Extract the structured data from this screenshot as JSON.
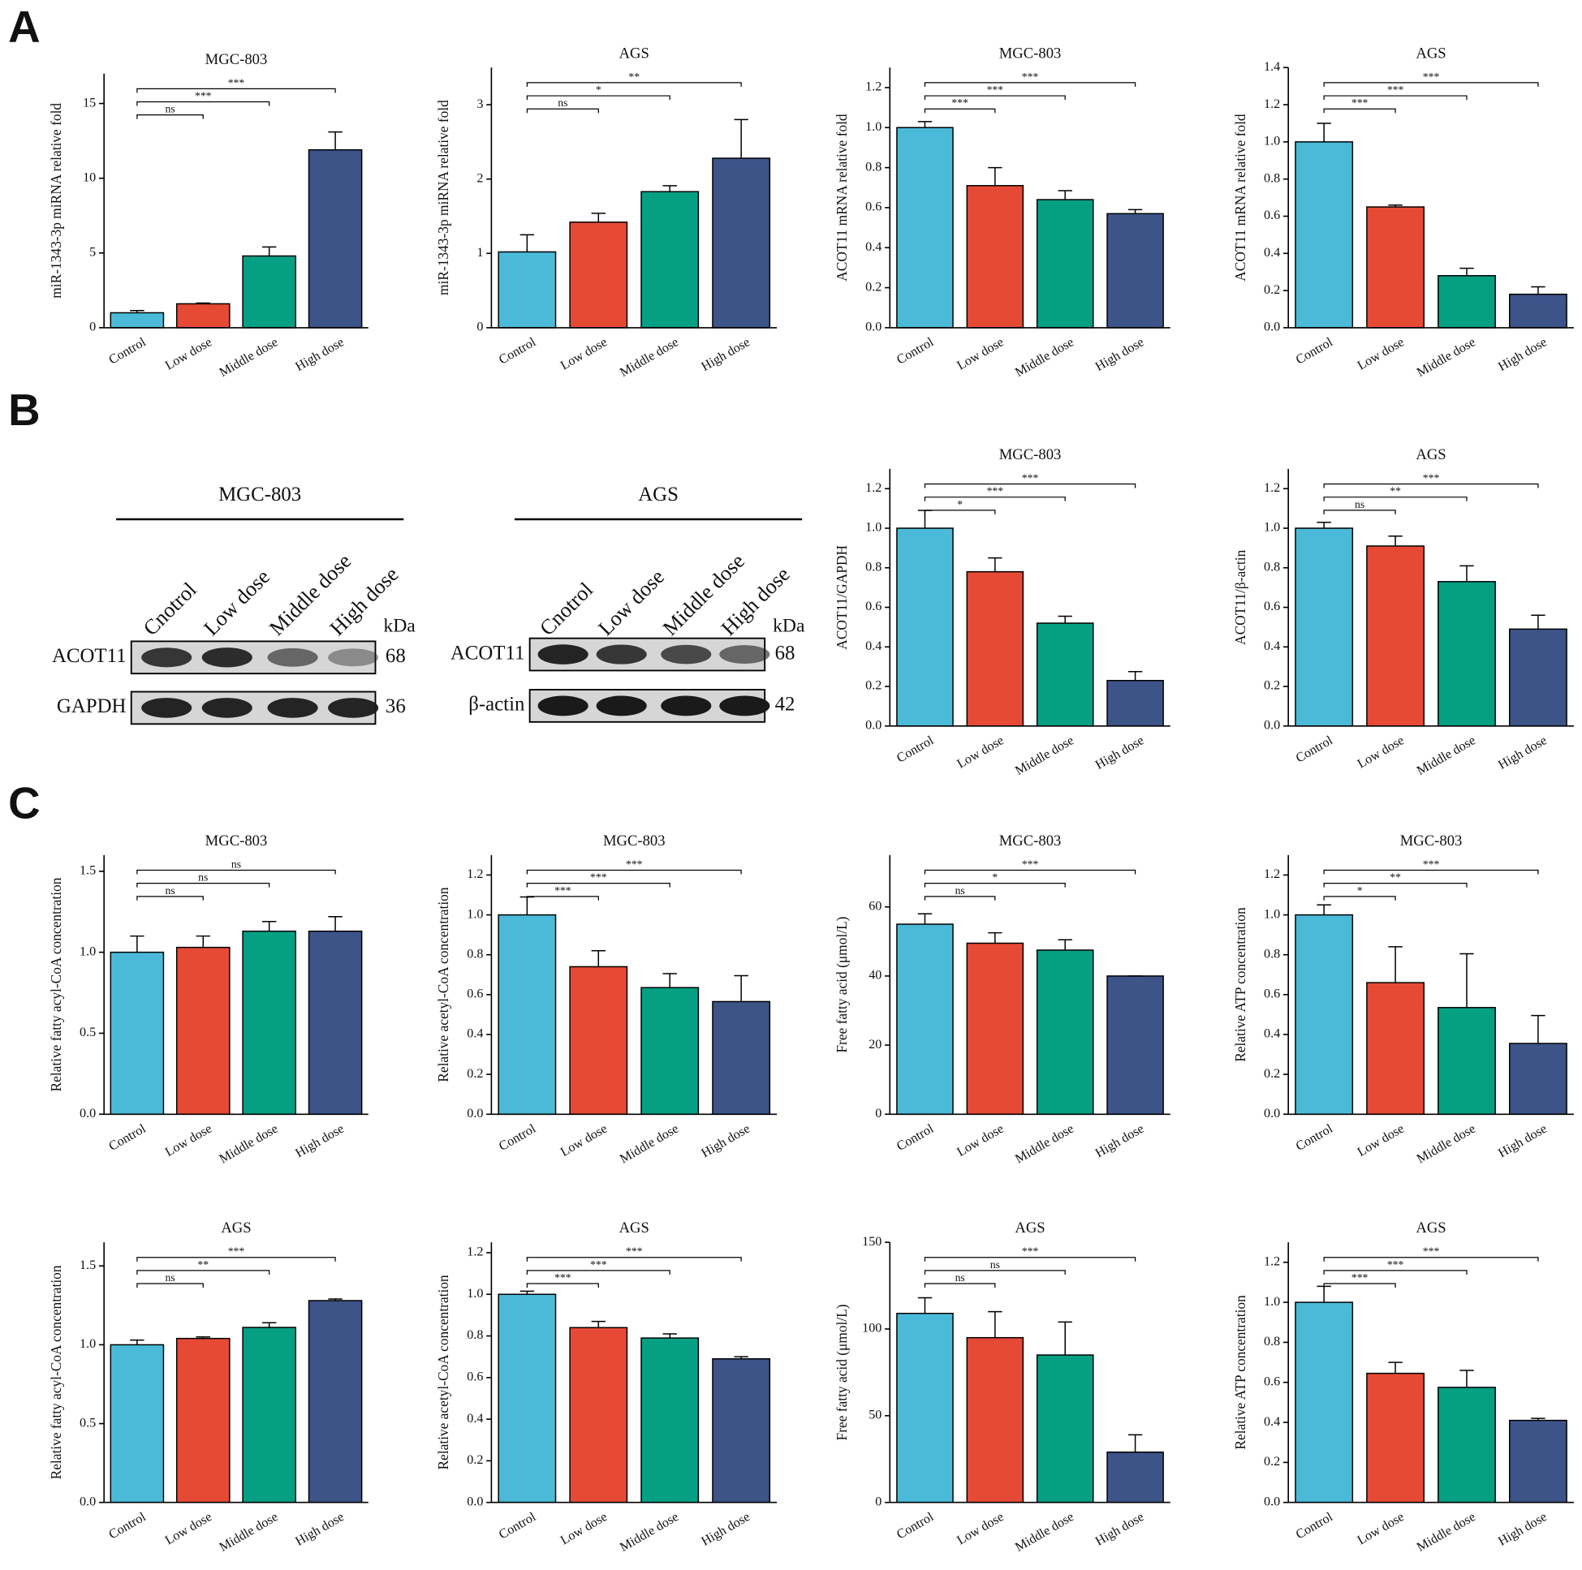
{
  "panels": [
    "A",
    "B",
    "C"
  ],
  "blots": [
    {
      "title": "MGC-803",
      "lanes": [
        "Cnotrol",
        "Low dose",
        "Middle dose",
        "High dose"
      ],
      "unit": "kDa",
      "rows": [
        {
          "label": "ACOT11",
          "size": "68"
        },
        {
          "label": "GAPDH",
          "size": "36"
        }
      ]
    },
    {
      "title": "AGS",
      "lanes": [
        "Cnotrol",
        "Low dose",
        "Middle dose",
        "High dose"
      ],
      "unit": "kDa",
      "rows": [
        {
          "label": "ACOT11",
          "size": "68"
        },
        {
          "label": "β-actin",
          "size": "42"
        }
      ]
    }
  ],
  "chart_data": [
    {
      "type": "bar",
      "title": "MGC-803",
      "ylabel": "miR-1343-3p miRNA relative fold",
      "categories": [
        "Control",
        "Low dose",
        "Middle dose",
        "High dose"
      ],
      "colors": [
        "#4bbad8",
        "#e64a35",
        "#05a083",
        "#3c5488"
      ],
      "values": [
        1,
        1.6,
        4.8,
        11.9
      ],
      "errors": [
        0.15,
        0.05,
        0.6,
        1.2
      ],
      "significance": [
        "ns",
        "***",
        "***"
      ],
      "ylim": [
        0,
        17
      ],
      "yticks": [
        0,
        5,
        10,
        15
      ]
    },
    {
      "type": "bar",
      "title": "AGS",
      "ylabel": "miR-1343-3p miRNA relative fold",
      "categories": [
        "Control",
        "Low dose",
        "Middle dose",
        "High dose"
      ],
      "colors": [
        "#4bbad8",
        "#e64a35",
        "#05a083",
        "#3c5488"
      ],
      "values": [
        1.02,
        1.42,
        1.83,
        2.28
      ],
      "errors": [
        0.23,
        0.12,
        0.08,
        0.52
      ],
      "significance": [
        "ns",
        "*",
        "**"
      ],
      "ylim": [
        0,
        3.5
      ],
      "yticks": [
        0,
        1,
        2,
        3
      ]
    },
    {
      "type": "bar",
      "title": "MGC-803",
      "ylabel": "ACOT11 mRNA relative fold",
      "categories": [
        "Control",
        "Low dose",
        "Middle dose",
        "High dose"
      ],
      "colors": [
        "#4bbad8",
        "#e64a35",
        "#05a083",
        "#3c5488"
      ],
      "values": [
        1.0,
        0.71,
        0.64,
        0.57
      ],
      "errors": [
        0.03,
        0.09,
        0.045,
        0.02
      ],
      "significance": [
        "***",
        "***",
        "***"
      ],
      "ylim": [
        0,
        1.3
      ],
      "yticks": [
        {
          "value": 0,
          "label": "0.0"
        },
        {
          "value": 0.2,
          "label": "0.2"
        },
        {
          "value": 0.4,
          "label": "0.4"
        },
        {
          "value": 0.6,
          "label": "0.6"
        },
        {
          "value": 0.8,
          "label": "0.8"
        },
        {
          "value": 1,
          "label": "1.0"
        },
        {
          "value": 1.2,
          "label": "1.2"
        }
      ]
    },
    {
      "type": "bar",
      "title": "AGS",
      "ylabel": "ACOT11 mRNA relative fold",
      "categories": [
        "Control",
        "Low dose",
        "Middle dose",
        "High dose"
      ],
      "colors": [
        "#4bbad8",
        "#e64a35",
        "#05a083",
        "#3c5488"
      ],
      "values": [
        1.0,
        0.65,
        0.28,
        0.18
      ],
      "errors": [
        0.1,
        0.01,
        0.04,
        0.04
      ],
      "significance": [
        "***",
        "***",
        "***"
      ],
      "ylim": [
        0,
        1.4
      ],
      "yticks": [
        {
          "value": 0,
          "label": "0.0"
        },
        {
          "value": 0.2,
          "label": "0.2"
        },
        {
          "value": 0.4,
          "label": "0.4"
        },
        {
          "value": 0.6,
          "label": "0.6"
        },
        {
          "value": 0.8,
          "label": "0.8"
        },
        {
          "value": 1,
          "label": "1.0"
        },
        {
          "value": 1.2,
          "label": "1.2"
        },
        {
          "value": 1.4,
          "label": "1.4"
        }
      ]
    },
    {
      "type": "bar",
      "title": "MGC-803",
      "ylabel": "ACOT11/GAPDH",
      "categories": [
        "Control",
        "Low dose",
        "Middle dose",
        "High dose"
      ],
      "colors": [
        "#4bbad8",
        "#e64a35",
        "#05a083",
        "#3c5488"
      ],
      "values": [
        1.0,
        0.78,
        0.52,
        0.23
      ],
      "errors": [
        0.09,
        0.07,
        0.035,
        0.045
      ],
      "significance": [
        "*",
        "***",
        "***"
      ],
      "ylim": [
        0,
        1.3
      ],
      "yticks": [
        {
          "value": 0,
          "label": "0.0"
        },
        {
          "value": 0.2,
          "label": "0.2"
        },
        {
          "value": 0.4,
          "label": "0.4"
        },
        {
          "value": 0.6,
          "label": "0.6"
        },
        {
          "value": 0.8,
          "label": "0.8"
        },
        {
          "value": 1,
          "label": "1.0"
        },
        {
          "value": 1.2,
          "label": "1.2"
        }
      ]
    },
    {
      "type": "bar",
      "title": "AGS",
      "ylabel": "ACOT11/β-actin",
      "categories": [
        "Control",
        "Low dose",
        "Middle dose",
        "High dose"
      ],
      "colors": [
        "#4bbad8",
        "#e64a35",
        "#05a083",
        "#3c5488"
      ],
      "values": [
        1.0,
        0.91,
        0.73,
        0.49
      ],
      "errors": [
        0.03,
        0.05,
        0.08,
        0.07
      ],
      "significance": [
        "ns",
        "**",
        "***"
      ],
      "ylim": [
        0,
        1.3
      ],
      "yticks": [
        {
          "value": 0,
          "label": "0.0"
        },
        {
          "value": 0.2,
          "label": "0.2"
        },
        {
          "value": 0.4,
          "label": "0.4"
        },
        {
          "value": 0.6,
          "label": "0.6"
        },
        {
          "value": 0.8,
          "label": "0.8"
        },
        {
          "value": 1,
          "label": "1.0"
        },
        {
          "value": 1.2,
          "label": "1.2"
        }
      ]
    },
    {
      "type": "bar",
      "title": "MGC-803",
      "ylabel": "Relative fatty acyl-CoA concentration",
      "categories": [
        "Control",
        "Low dose",
        "Middle dose",
        "High dose"
      ],
      "colors": [
        "#4bbad8",
        "#e64a35",
        "#05a083",
        "#3c5488"
      ],
      "values": [
        1.0,
        1.03,
        1.13,
        1.13
      ],
      "errors": [
        0.1,
        0.07,
        0.06,
        0.09
      ],
      "significance": [
        "ns",
        "ns",
        "ns"
      ],
      "ylim": [
        0,
        1.6
      ],
      "yticks": [
        {
          "value": 0,
          "label": "0.0"
        },
        {
          "value": 0.5,
          "label": "0.5"
        },
        {
          "value": 1,
          "label": "1.0"
        },
        {
          "value": 1.5,
          "label": "1.5"
        }
      ]
    },
    {
      "type": "bar",
      "title": "MGC-803",
      "ylabel": "Relative acetyl-CoA concentration",
      "categories": [
        "Control",
        "Low dose",
        "Middle dose",
        "High dose"
      ],
      "colors": [
        "#4bbad8",
        "#e64a35",
        "#05a083",
        "#3c5488"
      ],
      "values": [
        1.0,
        0.74,
        0.635,
        0.565
      ],
      "errors": [
        0.09,
        0.08,
        0.07,
        0.13
      ],
      "significance": [
        "***",
        "***",
        "***"
      ],
      "ylim": [
        0,
        1.3
      ],
      "yticks": [
        {
          "value": 0,
          "label": "0.0"
        },
        {
          "value": 0.2,
          "label": "0.2"
        },
        {
          "value": 0.4,
          "label": "0.4"
        },
        {
          "value": 0.6,
          "label": "0.6"
        },
        {
          "value": 0.8,
          "label": "0.8"
        },
        {
          "value": 1,
          "label": "1.0"
        },
        {
          "value": 1.2,
          "label": "1.2"
        }
      ]
    },
    {
      "type": "bar",
      "title": "MGC-803",
      "ylabel": "Free fatty acid (μmol/L)",
      "categories": [
        "Control",
        "Low dose",
        "Middle dose",
        "High dose"
      ],
      "colors": [
        "#4bbad8",
        "#e64a35",
        "#05a083",
        "#3c5488"
      ],
      "values": [
        55,
        49.5,
        47.5,
        40
      ],
      "errors": [
        3,
        3,
        3,
        0
      ],
      "significance": [
        "ns",
        "*",
        "***"
      ],
      "ylim": [
        0,
        75
      ],
      "yticks": [
        0,
        20,
        40,
        60
      ]
    },
    {
      "type": "bar",
      "title": "MGC-803",
      "ylabel": "Relative ATP concentration",
      "categories": [
        "Control",
        "Low dose",
        "Middle dose",
        "High dose"
      ],
      "colors": [
        "#4bbad8",
        "#e64a35",
        "#05a083",
        "#3c5488"
      ],
      "values": [
        1.0,
        0.66,
        0.535,
        0.355
      ],
      "errors": [
        0.05,
        0.18,
        0.27,
        0.14
      ],
      "significance": [
        "*",
        "**",
        "***"
      ],
      "ylim": [
        0,
        1.3
      ],
      "yticks": [
        {
          "value": 0,
          "label": "0.0"
        },
        {
          "value": 0.2,
          "label": "0.2"
        },
        {
          "value": 0.4,
          "label": "0.4"
        },
        {
          "value": 0.6,
          "label": "0.6"
        },
        {
          "value": 0.8,
          "label": "0.8"
        },
        {
          "value": 1,
          "label": "1.0"
        },
        {
          "value": 1.2,
          "label": "1.2"
        }
      ]
    },
    {
      "type": "bar",
      "title": "AGS",
      "ylabel": "Relative fatty acyl-CoA concentration",
      "categories": [
        "Control",
        "Low dose",
        "Middle dose",
        "High dose"
      ],
      "colors": [
        "#4bbad8",
        "#e64a35",
        "#05a083",
        "#3c5488"
      ],
      "values": [
        1.0,
        1.04,
        1.11,
        1.28
      ],
      "errors": [
        0.03,
        0.01,
        0.03,
        0.01
      ],
      "significance": [
        "ns",
        "**",
        "***"
      ],
      "ylim": [
        0,
        1.65
      ],
      "yticks": [
        {
          "value": 0,
          "label": "0.0"
        },
        {
          "value": 0.5,
          "label": "0.5"
        },
        {
          "value": 1,
          "label": "1.0"
        },
        {
          "value": 1.5,
          "label": "1.5"
        }
      ]
    },
    {
      "type": "bar",
      "title": "AGS",
      "ylabel": "Relative acetyl-CoA concentration",
      "categories": [
        "Control",
        "Low dose",
        "Middle dose",
        "High dose"
      ],
      "colors": [
        "#4bbad8",
        "#e64a35",
        "#05a083",
        "#3c5488"
      ],
      "values": [
        1.0,
        0.84,
        0.79,
        0.69
      ],
      "errors": [
        0.015,
        0.03,
        0.02,
        0.01
      ],
      "significance": [
        "***",
        "***",
        "***"
      ],
      "ylim": [
        0,
        1.25
      ],
      "yticks": [
        {
          "value": 0,
          "label": "0.0"
        },
        {
          "value": 0.2,
          "label": "0.2"
        },
        {
          "value": 0.4,
          "label": "0.4"
        },
        {
          "value": 0.6,
          "label": "0.6"
        },
        {
          "value": 0.8,
          "label": "0.8"
        },
        {
          "value": 1,
          "label": "1.0"
        },
        {
          "value": 1.2,
          "label": "1.2"
        }
      ]
    },
    {
      "type": "bar",
      "title": "AGS",
      "ylabel": "Free fatty acid (μmol/L)",
      "categories": [
        "Control",
        "Low dose",
        "Middle dose",
        "High dose"
      ],
      "colors": [
        "#4bbad8",
        "#e64a35",
        "#05a083",
        "#3c5488"
      ],
      "values": [
        109,
        95,
        85,
        29
      ],
      "errors": [
        9,
        15,
        19,
        10
      ],
      "significance": [
        "ns",
        "ns",
        "***"
      ],
      "ylim": [
        0,
        150
      ],
      "yticks": [
        0,
        50,
        100,
        150
      ]
    },
    {
      "type": "bar",
      "title": "AGS",
      "ylabel": "Relative ATP concentration",
      "categories": [
        "Control",
        "Low dose",
        "Middle dose",
        "High dose"
      ],
      "colors": [
        "#4bbad8",
        "#e64a35",
        "#05a083",
        "#3c5488"
      ],
      "values": [
        1.0,
        0.645,
        0.575,
        0.41
      ],
      "errors": [
        0.08,
        0.055,
        0.085,
        0.01
      ],
      "significance": [
        "***",
        "***",
        "***"
      ],
      "ylim": [
        0,
        1.3
      ],
      "yticks": [
        {
          "value": 0,
          "label": "0.0"
        },
        {
          "value": 0.2,
          "label": "0.2"
        },
        {
          "value": 0.4,
          "label": "0.4"
        },
        {
          "value": 0.6,
          "label": "0.6"
        },
        {
          "value": 0.8,
          "label": "0.8"
        },
        {
          "value": 1,
          "label": "1.0"
        },
        {
          "value": 1.2,
          "label": "1.2"
        }
      ]
    }
  ]
}
